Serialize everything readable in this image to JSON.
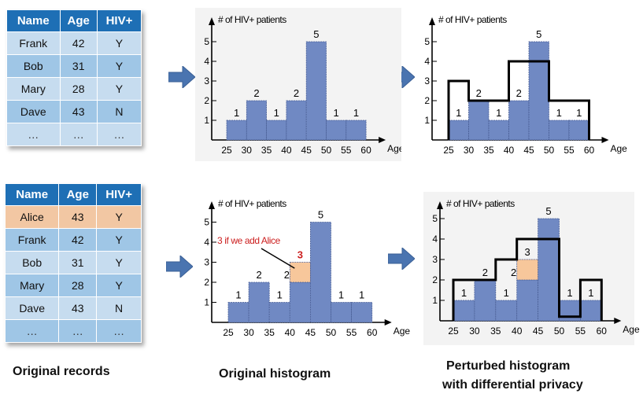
{
  "tables": [
    {
      "headers": [
        "Name",
        "Age",
        "HIV+"
      ],
      "rows": [
        [
          "Frank",
          "42",
          "Y"
        ],
        [
          "Bob",
          "31",
          "Y"
        ],
        [
          "Mary",
          "28",
          "Y"
        ],
        [
          "Dave",
          "43",
          "N"
        ],
        [
          "…",
          "…",
          "…"
        ]
      ]
    },
    {
      "headers": [
        "Name",
        "Age",
        "HIV+"
      ],
      "rows": [
        [
          "Alice",
          "43",
          "Y"
        ],
        [
          "Frank",
          "42",
          "Y"
        ],
        [
          "Bob",
          "31",
          "Y"
        ],
        [
          "Mary",
          "28",
          "Y"
        ],
        [
          "Dave",
          "43",
          "N"
        ],
        [
          "…",
          "…",
          "…"
        ]
      ]
    }
  ],
  "chart_data": [
    {
      "type": "bar",
      "ylabel": "# of HIV+ patients",
      "xlabel": "Age",
      "x_ticks": [
        "25",
        "30",
        "35",
        "40",
        "45",
        "50",
        "55",
        "60"
      ],
      "y_ticks": [
        "1",
        "2",
        "3",
        "4",
        "5"
      ],
      "bins": [
        "25-30",
        "30-35",
        "35-40",
        "40-45",
        "45-50",
        "50-55",
        "55-60"
      ],
      "values": [
        1,
        2,
        1,
        2,
        5,
        1,
        1
      ],
      "ylim": [
        0,
        5
      ]
    },
    {
      "type": "bar",
      "ylabel": "# of HIV+ patients",
      "xlabel": "Age",
      "x_ticks": [
        "25",
        "30",
        "35",
        "40",
        "45",
        "50",
        "55",
        "60"
      ],
      "y_ticks": [
        "1",
        "2",
        "3",
        "4",
        "5"
      ],
      "bins": [
        "25-30",
        "30-35",
        "35-40",
        "40-45",
        "45-50",
        "50-55",
        "55-60"
      ],
      "values": [
        1,
        2,
        1,
        2,
        5,
        1,
        1
      ],
      "perturbed": [
        3,
        2,
        2,
        4,
        4,
        2,
        2
      ],
      "ylim": [
        0,
        5
      ]
    },
    {
      "type": "bar",
      "ylabel": "# of HIV+ patients",
      "xlabel": "Age",
      "x_ticks": [
        "25",
        "30",
        "35",
        "40",
        "45",
        "50",
        "55",
        "60"
      ],
      "y_ticks": [
        "1",
        "2",
        "3",
        "4",
        "5"
      ],
      "bins": [
        "25-30",
        "30-35",
        "35-40",
        "40-45",
        "45-50",
        "50-55",
        "55-60"
      ],
      "values": [
        1,
        2,
        1,
        2,
        5,
        1,
        1
      ],
      "added": [
        0,
        0,
        0,
        1,
        0,
        0,
        0
      ],
      "added_label": "3",
      "annotation": "3 if we add Alice",
      "ylim": [
        0,
        5
      ]
    },
    {
      "type": "bar",
      "ylabel": "# of HIV+ patients",
      "xlabel": "Age",
      "x_ticks": [
        "25",
        "30",
        "35",
        "40",
        "45",
        "50",
        "55",
        "60"
      ],
      "y_ticks": [
        "1",
        "2",
        "3",
        "4",
        "5"
      ],
      "bins": [
        "25-30",
        "30-35",
        "35-40",
        "40-45",
        "45-50",
        "50-55",
        "55-60"
      ],
      "values": [
        1,
        2,
        1,
        2,
        5,
        1,
        1
      ],
      "added": [
        0,
        0,
        0,
        1,
        0,
        0,
        0
      ],
      "added_label": "3",
      "perturbed": [
        2,
        2,
        3,
        4,
        4,
        0.2,
        2
      ],
      "ylim": [
        0,
        5
      ]
    }
  ],
  "captions": {
    "original_records": "Original records",
    "original_histogram": "Original histogram",
    "perturbed_line1": "Perturbed histogram",
    "perturbed_line2": "with differential privacy"
  },
  "colors": {
    "bar": "#7089c3",
    "bar_border": "#4a5f96",
    "added": "#f7c79b",
    "annotation": "#cc1f1f",
    "arrow": "#4a74b0",
    "table_header": "#1e6fb5"
  }
}
